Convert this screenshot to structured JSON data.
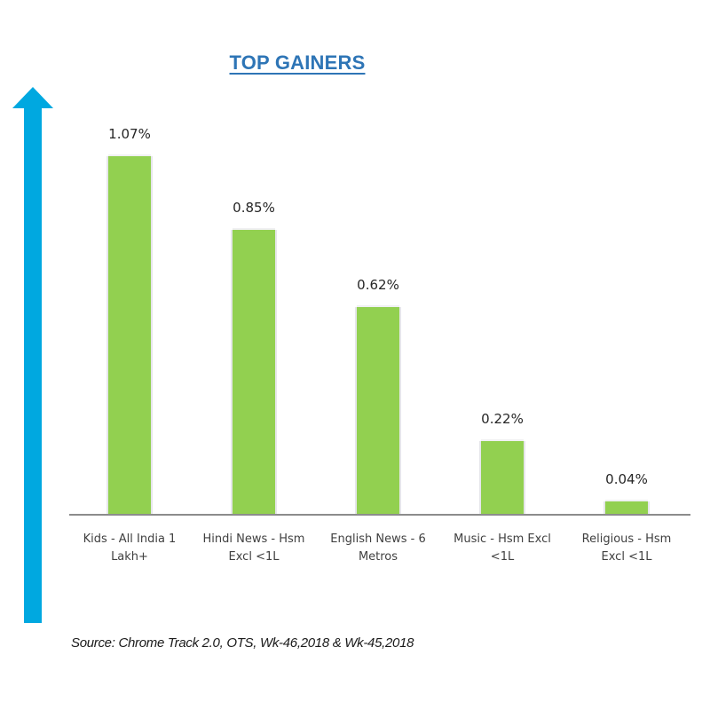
{
  "title": "TOP GAINERS",
  "source": "Source: Chrome Track 2.0, OTS, Wk-46,2018 & Wk-45,2018",
  "colors": {
    "bar": "#92d050",
    "title": "#2e75b6",
    "arrow": "#00a8e0",
    "axis": "#8c8c8c"
  },
  "decor": {
    "arrow_icon": "up-arrow-icon"
  },
  "chart_data": {
    "type": "bar",
    "title": "TOP GAINERS",
    "categories": [
      "Kids - All India 1 Lakh+",
      "Hindi News - Hsm Excl <1L",
      "English News - 6 Metros",
      "Music - Hsm Excl <1L",
      "Religious - Hsm Excl <1L"
    ],
    "category_lines": [
      [
        "Kids - All India 1",
        "Lakh+"
      ],
      [
        "Hindi News - Hsm",
        "Excl <1L"
      ],
      [
        "English News - 6",
        "Metros"
      ],
      [
        "Music - Hsm Excl",
        "<1L"
      ],
      [
        "Religious - Hsm",
        "Excl <1L"
      ]
    ],
    "values": [
      1.07,
      0.85,
      0.62,
      0.22,
      0.04
    ],
    "value_labels": [
      "1.07%",
      "0.85%",
      "0.62%",
      "0.22%",
      "0.04%"
    ],
    "unit": "%",
    "xlabel": "",
    "ylabel": "",
    "ylim": [
      0,
      1.27
    ],
    "grid": false,
    "legend": null,
    "y_axis_visible": false,
    "annotations": [
      "Source: Chrome Track 2.0, OTS, Wk-46,2018 & Wk-45,2018"
    ]
  }
}
